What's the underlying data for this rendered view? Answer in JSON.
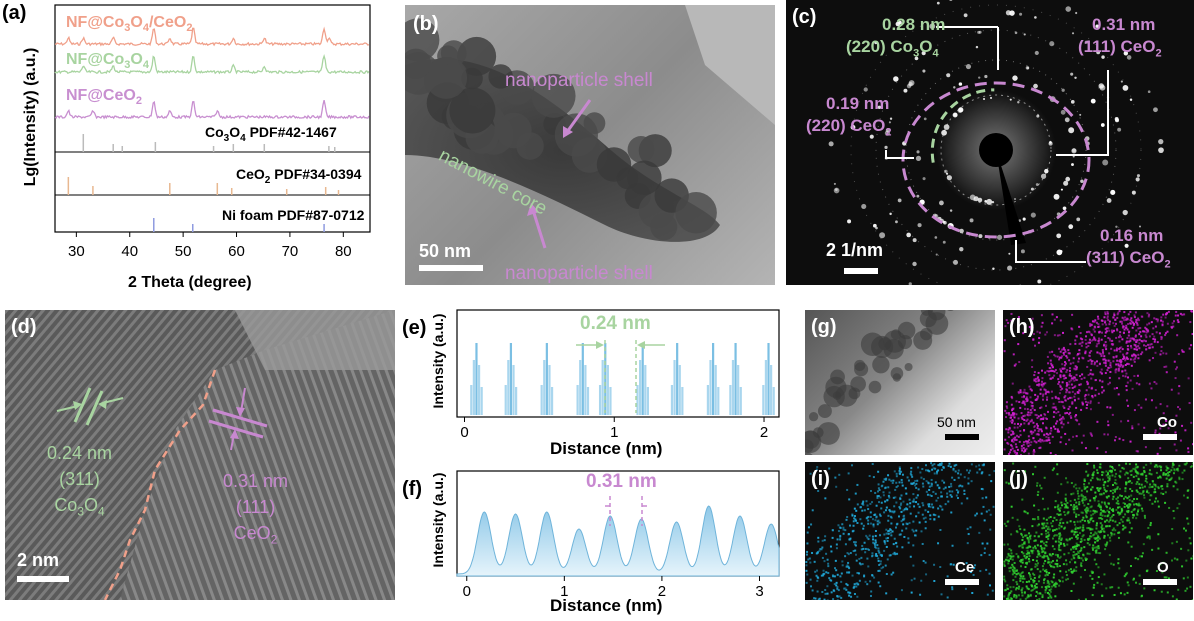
{
  "panels": {
    "a": {
      "label": "(a)",
      "series_labels": {
        "s1": {
          "base": "NF@Co",
          "sub1": "3",
          "mid": "O",
          "sub2": "4",
          "tail": "/CeO",
          "sub3": "2"
        },
        "s2": {
          "base": "NF@Co",
          "sub1": "3",
          "mid": "O",
          "sub2": "4"
        },
        "s3": {
          "base": "NF@CeO",
          "sub1": "2"
        }
      },
      "ref_labels": {
        "co3o4": {
          "base": "Co",
          "sub1": "3",
          "mid": "O",
          "sub2": "4",
          "tail": " PDF#42-1467"
        },
        "ceo2": {
          "base": "CeO",
          "sub1": "2",
          "tail": " PDF#34-0394"
        },
        "ni": {
          "text": "Ni foam PDF#87-0712"
        }
      },
      "ylabel": "Lg(Intensity) (a.u.)",
      "xlabel": "2 Theta (degree)",
      "xticks": [
        "30",
        "40",
        "50",
        "60",
        "70",
        "80"
      ]
    },
    "b": {
      "label": "(b)",
      "shell_top": "nanoparticle shell",
      "core": "nanowire core",
      "shell_bottom": "nanoparticle shell",
      "scale": "50 nm"
    },
    "c": {
      "label": "(c)",
      "a1": {
        "d": "0.28 nm",
        "plane": "(220) Co",
        "sub1": "3",
        "mid": "O",
        "sub2": "4"
      },
      "a2": {
        "d": "0.31 nm",
        "plane": "(111) CeO",
        "sub1": "2"
      },
      "a3": {
        "d": "0.19 nm",
        "plane": "(220) CeO",
        "sub1": "2"
      },
      "a4": {
        "d": "0.16 nm",
        "plane": "(311) CeO",
        "sub1": "2"
      },
      "scale": "2 1/nm"
    },
    "d": {
      "label": "(d)",
      "left": {
        "d": "0.24 nm",
        "plane": "(311)",
        "base": "Co",
        "sub1": "3",
        "mid": "O",
        "sub2": "4"
      },
      "right": {
        "d": "0.31 nm",
        "plane": "(111)",
        "base": "CeO",
        "sub1": "2"
      },
      "scale": "2 nm"
    },
    "e": {
      "label": "(e)",
      "annotation": "0.24 nm",
      "ylabel": "Intensity (a.u.)",
      "xlabel": "Distance (nm)",
      "xticks": [
        "0",
        "1",
        "2"
      ]
    },
    "f": {
      "label": "(f)",
      "annotation": "0.31 nm",
      "ylabel": "Intensity (a.u.)",
      "xlabel": "Distance (nm)",
      "xticks": [
        "0",
        "1",
        "2",
        "3"
      ]
    },
    "g": {
      "label": "(g)",
      "scale": "50 nm"
    },
    "h": {
      "label": "(h)",
      "element": "Co"
    },
    "i": {
      "label": "(i)",
      "element": "Ce"
    },
    "j": {
      "label": "(j)",
      "element": "O"
    }
  },
  "colors": {
    "salmon": "#f0a08a",
    "green": "#a8d4a0",
    "purple": "#c88fd0",
    "blue": "#8ec8e8",
    "magenta": "#d020d0",
    "cyan": "#20a8d8",
    "lime": "#30d030"
  },
  "chart_data": [
    {
      "type": "line",
      "title": "",
      "xlabel": "2 Theta (degree)",
      "ylabel": "Lg(Intensity) (a.u.)",
      "xlim": [
        26,
        85
      ],
      "series": [
        {
          "name": "NF@Co3O4/CeO2",
          "peaks": [
            28.5,
            31.3,
            36.9,
            44.5,
            47.5,
            51.9,
            59.4,
            65.2,
            76.4,
            77.3
          ]
        },
        {
          "name": "NF@Co3O4",
          "peaks": [
            31.3,
            36.9,
            44.5,
            51.9,
            59.4,
            65.2,
            76.4
          ]
        },
        {
          "name": "NF@CeO2",
          "peaks": [
            28.5,
            33.1,
            44.5,
            47.5,
            51.9,
            56.4,
            76.4
          ]
        }
      ],
      "references": [
        {
          "name": "Co3O4 PDF#42-1467",
          "x": [
            31.3,
            36.9,
            38.6,
            44.8,
            55.7,
            59.4,
            65.2,
            77.3,
            78.4
          ]
        },
        {
          "name": "CeO2 PDF#34-0394",
          "x": [
            28.5,
            33.1,
            47.5,
            56.4,
            59.1,
            69.4,
            76.7,
            79.1
          ]
        },
        {
          "name": "Ni foam PDF#87-0712",
          "x": [
            44.5,
            51.8,
            76.4
          ]
        }
      ]
    },
    {
      "type": "bar",
      "xlabel": "Distance (nm)",
      "ylabel": "Intensity (a.u.)",
      "xlim": [
        -0.05,
        2.1
      ],
      "period": 0.24,
      "peaks": [
        0.08,
        0.31,
        0.55,
        0.79,
        0.94,
        1.19,
        1.42,
        1.66,
        1.81,
        2.03
      ]
    },
    {
      "type": "area",
      "xlabel": "Distance (nm)",
      "ylabel": "Intensity (a.u.)",
      "xlim": [
        -0.1,
        3.2
      ],
      "period": 0.31,
      "peaks": [
        0.18,
        0.5,
        0.82,
        1.15,
        1.47,
        1.79,
        2.15,
        2.48,
        2.8,
        3.12
      ]
    }
  ]
}
